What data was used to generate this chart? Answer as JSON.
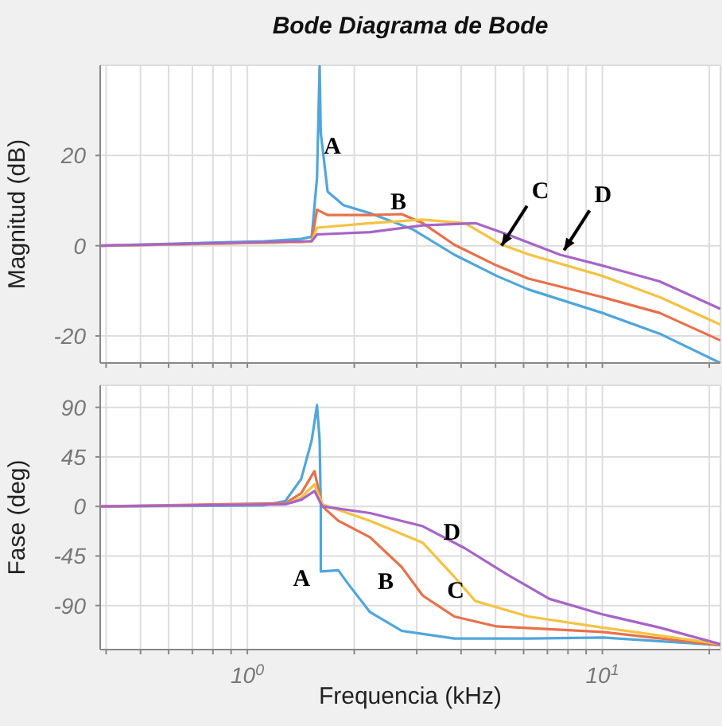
{
  "chart_data": [
    {
      "type": "line",
      "title": "Bode Diagrama de Bode",
      "ylabel": "Magnitud (dB)",
      "log": "x",
      "grid": true,
      "tick_labels": "y",
      "xlim": [
        0.385,
        21.5
      ],
      "xticks": [
        0.4,
        0.5,
        0.6,
        0.7,
        0.8,
        0.9,
        1,
        2,
        3,
        4,
        5,
        6,
        7,
        8,
        9,
        10,
        20
      ],
      "ylim": [
        -26,
        40
      ],
      "yticks": [
        -20,
        0,
        20
      ],
      "series": [
        {
          "color": "#4fa6dc",
          "x": [
            0.385,
            1.116,
            1.418,
            1.518,
            1.571,
            1.598,
            1.61,
            1.683,
            1.865,
            2.215,
            2.91,
            3.83,
            5.04,
            6.19,
            10,
            14.5,
            21.5
          ],
          "values": [
            0,
            1,
            1.5,
            2,
            15,
            40,
            25,
            12,
            9,
            7.2,
            3.7,
            -2,
            -6.7,
            -9.7,
            -14.9,
            -19.5,
            -26
          ]
        },
        {
          "color": "#e8704a",
          "x": [
            0.385,
            1.418,
            1.518,
            1.571,
            1.683,
            2.215,
            2.72,
            3.12,
            3.83,
            5.04,
            6.19,
            10,
            14.5,
            21.5
          ],
          "values": [
            0,
            0.8,
            1,
            8,
            6.8,
            6.8,
            7,
            5,
            0.2,
            -4.4,
            -7.3,
            -11.4,
            -14.9,
            -21
          ]
        },
        {
          "color": "#f5c242",
          "x": [
            0.385,
            1.418,
            1.518,
            1.571,
            2.215,
            3.12,
            4.1,
            5.22,
            6.19,
            10,
            14.5,
            21.5
          ],
          "values": [
            0,
            0.8,
            1,
            4,
            5,
            5.8,
            5,
            0.2,
            -1.9,
            -6.7,
            -11.4,
            -17.5
          ]
        },
        {
          "color": "#a764c8",
          "x": [
            0.385,
            1.518,
            1.571,
            2.215,
            3.12,
            4.39,
            5.4,
            7.6,
            10,
            14.5,
            21.5
          ],
          "values": [
            0,
            1,
            2.5,
            3,
            4.5,
            5,
            2.5,
            -2,
            -4.4,
            -7.9,
            -14
          ]
        }
      ],
      "annotations": [
        {
          "text": "A",
          "x": 1.683,
          "y": 12
        },
        {
          "text": "B",
          "x": 2.72,
          "y": 7
        },
        {
          "text": "C",
          "x": 5.2,
          "y": 0
        },
        {
          "text": "D",
          "x": 7.8,
          "y": -1
        }
      ]
    },
    {
      "type": "line",
      "xlabel": "Frequencia (kHz)",
      "ylabel": "Fase (deg)",
      "log": "x",
      "grid": true,
      "xlim": [
        0.385,
        21.5
      ],
      "xticks": [
        {
          "value": 0.4,
          "label": null
        },
        {
          "value": 0.5,
          "label": null
        },
        {
          "value": 0.6,
          "label": null
        },
        {
          "value": 0.7,
          "label": null
        },
        {
          "value": 0.8,
          "label": null
        },
        {
          "value": 0.9,
          "label": null
        },
        {
          "value": 1,
          "label": "10$^{0}$"
        },
        {
          "value": 2,
          "label": null
        },
        {
          "value": 3,
          "label": null
        },
        {
          "value": 4,
          "label": null
        },
        {
          "value": 5,
          "label": null
        },
        {
          "value": 6,
          "label": null
        },
        {
          "value": 7,
          "label": null
        },
        {
          "value": 8,
          "label": null
        },
        {
          "value": 9,
          "label": null
        },
        {
          "value": 10,
          "label": "10$^{1}$"
        },
        {
          "value": 20,
          "label": null
        }
      ],
      "ylim": [
        -130,
        110
      ],
      "yticks": [
        -90,
        -45,
        0,
        45,
        90
      ],
      "series": [
        {
          "color": "#4fa6dc",
          "x": [
            0.385,
            1.116,
            1.28,
            1.418,
            1.518,
            1.571,
            1.598,
            1.61,
            1.61,
            1.803,
            1.93,
            2.215,
            2.72,
            3.83,
            6.19,
            10,
            21.5
          ],
          "values": [
            0,
            1,
            5,
            25,
            60,
            92,
            60,
            0,
            -59,
            -58,
            -71,
            -96,
            -113,
            -120,
            -120,
            -119,
            -126
          ]
        },
        {
          "color": "#e8704a",
          "x": [
            0.385,
            1.28,
            1.418,
            1.545,
            1.627,
            1.803,
            2.215,
            2.72,
            3.12,
            3.83,
            5.04,
            10,
            21.5
          ],
          "values": [
            0,
            3,
            12,
            32,
            0,
            -13,
            -28,
            -55,
            -81,
            -100,
            -109,
            -114,
            -126
          ]
        },
        {
          "color": "#f5c242",
          "x": [
            0.385,
            1.28,
            1.418,
            1.545,
            1.627,
            2.215,
            3.12,
            3.83,
            4.39,
            6.19,
            10,
            21.5
          ],
          "values": [
            0,
            2,
            8,
            20,
            2,
            -13,
            -33,
            -64,
            -86,
            -100,
            -110,
            -125
          ]
        },
        {
          "color": "#a764c8",
          "x": [
            0.385,
            1.28,
            1.418,
            1.545,
            1.627,
            2.215,
            3.12,
            4.1,
            5.4,
            7.1,
            10,
            14.5,
            21.5
          ],
          "values": [
            0,
            2,
            6,
            14,
            0,
            -6,
            -18,
            -38,
            -62,
            -84,
            -98,
            -110,
            -125
          ]
        }
      ],
      "annotations": [
        {
          "text": "D",
          "x": 3.77,
          "y": -23
        },
        {
          "text": "A",
          "x": 1.61,
          "y": -59
        },
        {
          "text": "B",
          "x": 2.72,
          "y": -55
        },
        {
          "text": "C",
          "x": 3.86,
          "y": -76
        }
      ]
    }
  ]
}
